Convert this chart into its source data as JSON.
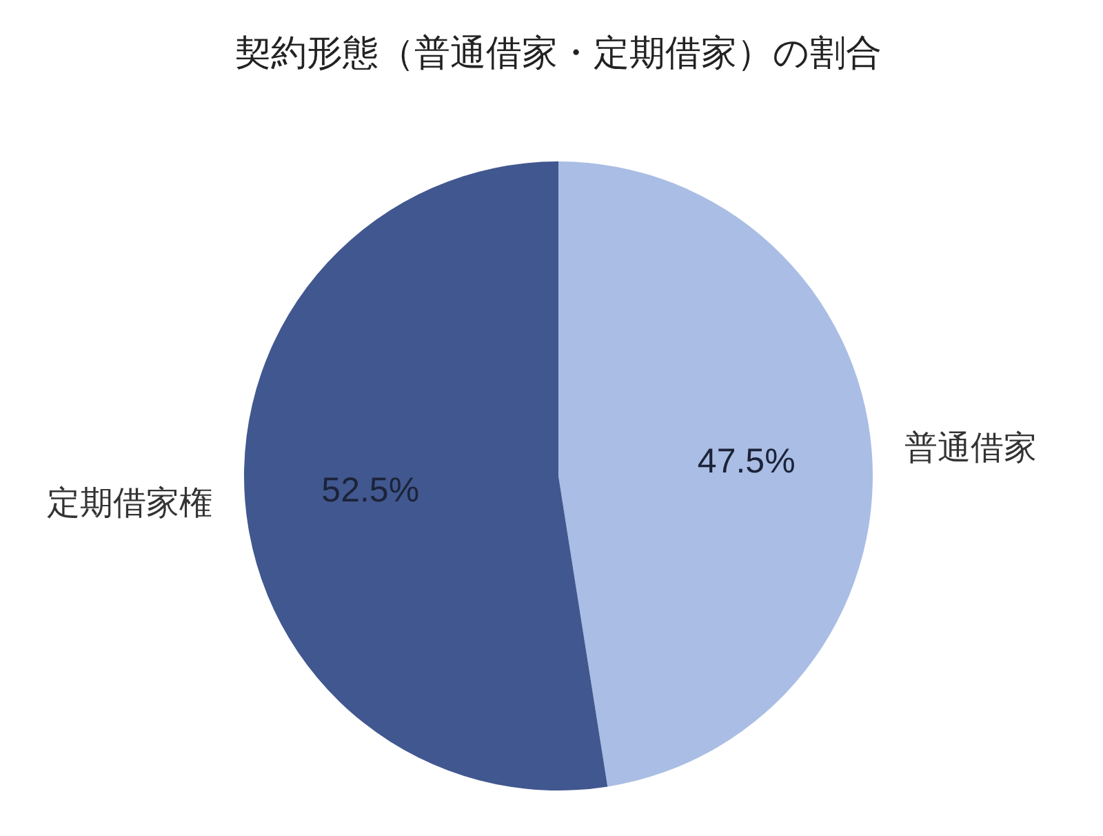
{
  "chart_data": {
    "type": "pie",
    "title": "契約形態（普通借家・定期借家）の割合",
    "categories": [
      "普通借家",
      "定期借家権"
    ],
    "values": [
      47.5,
      52.5
    ],
    "colors": [
      "#aabde4",
      "#41578f"
    ],
    "value_labels": [
      "47.5%",
      "52.5%"
    ]
  }
}
